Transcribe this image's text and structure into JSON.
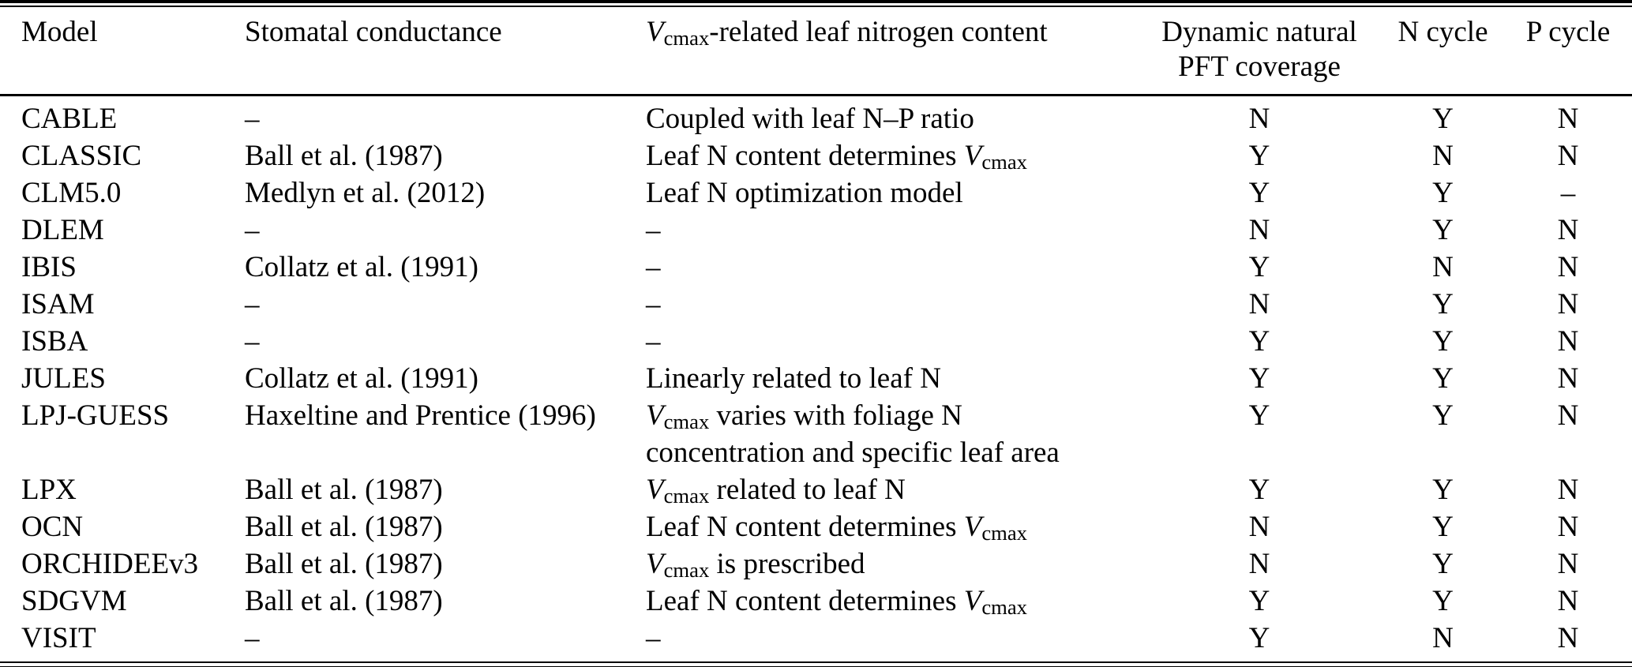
{
  "colors": {
    "background": "#ffffff",
    "text": "#000000",
    "rule": "#000000"
  },
  "table": {
    "headers": [
      "Model",
      "Stomatal conductance",
      "[i]V[/i][sub]cmax[/sub]-related leaf nitrogen content",
      "Dynamic natural[br]PFT coverage",
      "N cycle",
      "P cycle"
    ],
    "column_keys": [
      "cell-model",
      "cell-stomatal-conductance",
      "cell-vcmax-leaf-nitrogen",
      "cell-dynamic-pft-coverage",
      "cell-n-cycle",
      "cell-p-cycle"
    ],
    "rows": [
      [
        "CABLE",
        "–",
        "Coupled with leaf N–P ratio",
        "N",
        "Y",
        "N"
      ],
      [
        "CLASSIC",
        "Ball et al. (1987)",
        "Leaf N content determines [i]V[/i][sub]cmax[/sub]",
        "Y",
        "N",
        "N"
      ],
      [
        "CLM5.0",
        "Medlyn et al. (2012)",
        "Leaf N optimization model",
        "Y",
        "Y",
        "–"
      ],
      [
        "DLEM",
        "–",
        "–",
        "N",
        "Y",
        "N"
      ],
      [
        "IBIS",
        "Collatz et al. (1991)",
        "–",
        "Y",
        "N",
        "N"
      ],
      [
        "ISAM",
        "–",
        "–",
        "N",
        "Y",
        "N"
      ],
      [
        "ISBA",
        "–",
        "–",
        "Y",
        "Y",
        "N"
      ],
      [
        "JULES",
        "Collatz et al. (1991)",
        "Linearly related to leaf N",
        "Y",
        "Y",
        "N"
      ],
      [
        "LPJ-GUESS",
        "Haxeltine and Prentice (1996)",
        "[i]V[/i][sub]cmax[/sub] varies with foliage N[br]concentration and specific leaf area",
        "Y",
        "Y",
        "N"
      ],
      [
        "LPX",
        "Ball et al. (1987)",
        "[i]V[/i][sub]cmax[/sub] related to leaf N",
        "Y",
        "Y",
        "N"
      ],
      [
        "OCN",
        "Ball et al. (1987)",
        "Leaf N content determines [i]V[/i][sub]cmax[/sub]",
        "N",
        "Y",
        "N"
      ],
      [
        "ORCHIDEEv3",
        "Ball et al. (1987)",
        "[i]V[/i][sub]cmax[/sub] is prescribed",
        "N",
        "Y",
        "N"
      ],
      [
        "SDGVM",
        "Ball et al. (1987)",
        "Leaf N content determines [i]V[/i][sub]cmax[/sub]",
        "Y",
        "Y",
        "N"
      ],
      [
        "VISIT",
        "–",
        "–",
        "Y",
        "N",
        "N"
      ]
    ]
  }
}
